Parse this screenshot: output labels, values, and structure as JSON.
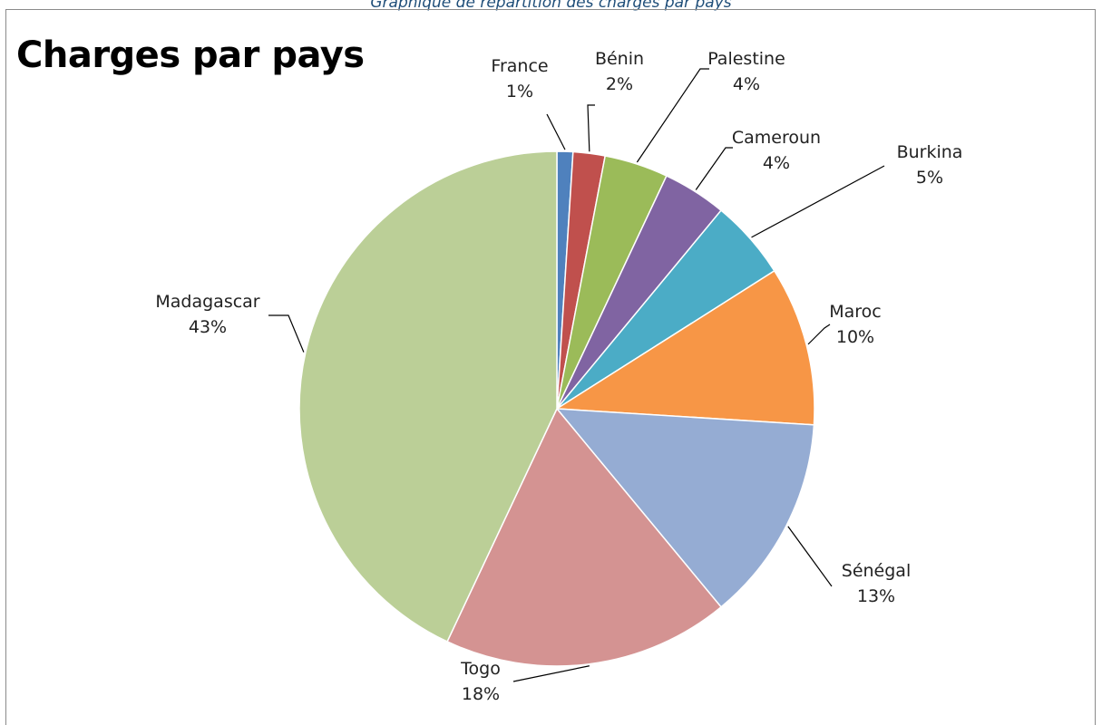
{
  "caption": "Graphique de répartition des charges par pays",
  "chart_data": {
    "type": "pie",
    "title": "Charges par pays",
    "slices": [
      {
        "name": "France",
        "value": 1,
        "label": "1%",
        "color": "#4f81bd"
      },
      {
        "name": "Bénin",
        "value": 2,
        "label": "2%",
        "color": "#c0504d"
      },
      {
        "name": "Palestine",
        "value": 4,
        "label": "4%",
        "color": "#9bbb59"
      },
      {
        "name": "Cameroun",
        "value": 4,
        "label": "4%",
        "color": "#8064a2"
      },
      {
        "name": "Burkina",
        "value": 5,
        "label": "5%",
        "color": "#4bacc6"
      },
      {
        "name": "Maroc",
        "value": 10,
        "label": "10%",
        "color": "#f79646"
      },
      {
        "name": "Sénégal",
        "value": 13,
        "label": "13%",
        "color": "#95acd3"
      },
      {
        "name": "Togo",
        "value": 18,
        "label": "18%",
        "color": "#d49392"
      },
      {
        "name": "Madagascar",
        "value": 43,
        "label": "43%",
        "color": "#bbcf97"
      }
    ],
    "start": "top",
    "direction": "clockwise"
  }
}
